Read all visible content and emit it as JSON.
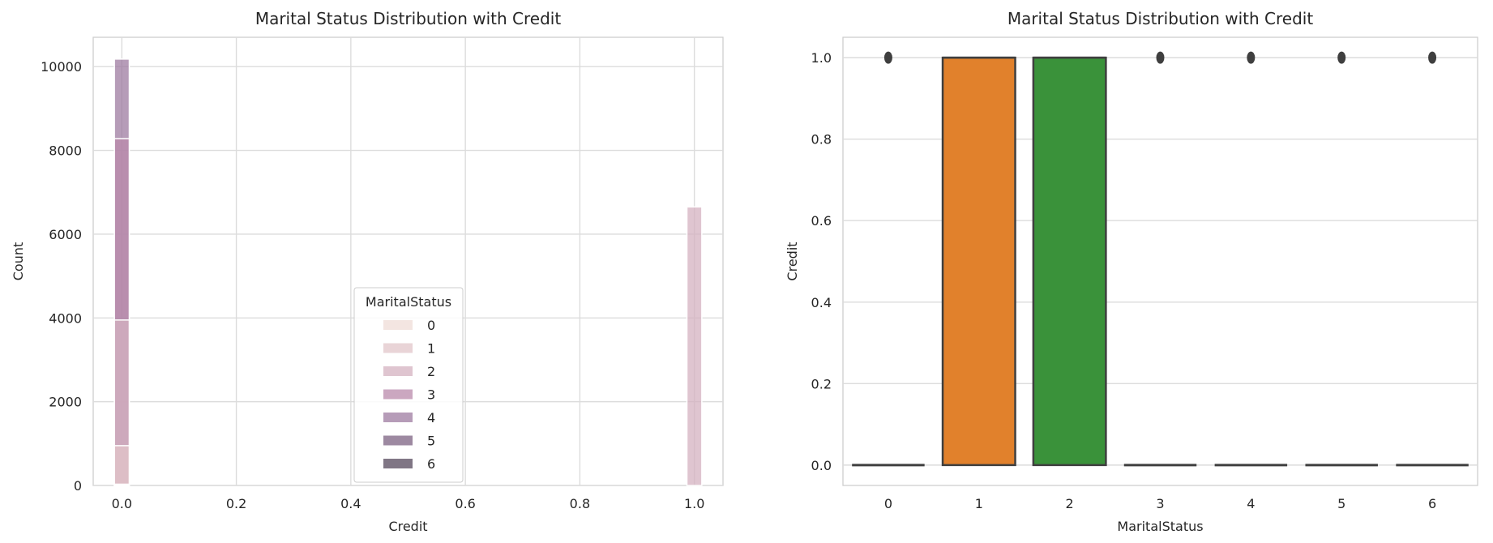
{
  "chart_data": [
    {
      "type": "histogram",
      "title": "Marital Status Distribution with Credit",
      "xlabel": "Credit",
      "ylabel": "Count",
      "xlim": [
        -0.05,
        1.05
      ],
      "ylim": [
        0,
        10700
      ],
      "xticks": [
        0.0,
        0.2,
        0.4,
        0.6,
        0.8,
        1.0
      ],
      "xtick_labels": [
        "0.0",
        "0.2",
        "0.4",
        "0.6",
        "0.8",
        "1.0"
      ],
      "yticks": [
        0,
        2000,
        4000,
        6000,
        8000,
        10000
      ],
      "ytick_labels": [
        "0",
        "2000",
        "4000",
        "6000",
        "8000",
        "10000"
      ],
      "grid": true,
      "multiple": "layer",
      "bin_width": 0.03,
      "legend": {
        "title": "MaritalStatus",
        "position": "lower-center",
        "entries": [
          "0",
          "1",
          "2",
          "3",
          "4",
          "5",
          "6"
        ]
      },
      "series": [
        {
          "name": "0",
          "color": "#efdcd7",
          "x": [
            0.0,
            1.0
          ],
          "values": [
            30,
            0
          ]
        },
        {
          "name": "1",
          "color": "#e2c6ca",
          "x": [
            0.0,
            1.0
          ],
          "values": [
            950,
            0
          ]
        },
        {
          "name": "2",
          "color": "#d4b1c0",
          "x": [
            0.0,
            1.0
          ],
          "values": [
            3950,
            6650
          ]
        },
        {
          "name": "3",
          "color": "#b98aab",
          "x": [
            0.0,
            1.0
          ],
          "values": [
            8280,
            0
          ]
        },
        {
          "name": "4",
          "color": "#9d7ba0",
          "x": [
            0.0,
            1.0
          ],
          "values": [
            10180,
            0
          ]
        },
        {
          "name": "5",
          "color": "#7c6282",
          "x": [
            0.0,
            1.0
          ],
          "values": [
            10,
            0
          ]
        },
        {
          "name": "6",
          "color": "#56485c",
          "x": [
            0.0,
            1.0
          ],
          "values": [
            5,
            0
          ]
        }
      ]
    },
    {
      "type": "box",
      "title": "Marital Status Distribution with Credit",
      "xlabel": "MaritalStatus",
      "ylabel": "Credit",
      "ylim": [
        -0.05,
        1.05
      ],
      "categories": [
        "0",
        "1",
        "2",
        "3",
        "4",
        "5",
        "6"
      ],
      "yticks": [
        0.0,
        0.2,
        0.4,
        0.6,
        0.8,
        1.0
      ],
      "ytick_labels": [
        "0.0",
        "0.2",
        "0.4",
        "0.6",
        "0.8",
        "1.0"
      ],
      "grid": true,
      "boxes": [
        {
          "category": "0",
          "q1": 0,
          "median": 0,
          "q3": 0,
          "whisker_low": 0,
          "whisker_high": 0,
          "outliers": [
            1.0
          ],
          "color": "#3274a1"
        },
        {
          "category": "1",
          "q1": 0,
          "median": 1,
          "q3": 1,
          "whisker_low": 0,
          "whisker_high": 1,
          "outliers": [],
          "color": "#e1812c"
        },
        {
          "category": "2",
          "q1": 0,
          "median": 1,
          "q3": 1,
          "whisker_low": 0,
          "whisker_high": 1,
          "outliers": [],
          "color": "#3a923a"
        },
        {
          "category": "3",
          "q1": 0,
          "median": 0,
          "q3": 0,
          "whisker_low": 0,
          "whisker_high": 0,
          "outliers": [
            1.0
          ],
          "color": "#c03d3e"
        },
        {
          "category": "4",
          "q1": 0,
          "median": 0,
          "q3": 0,
          "whisker_low": 0,
          "whisker_high": 0,
          "outliers": [
            1.0
          ],
          "color": "#9372b2"
        },
        {
          "category": "5",
          "q1": 0,
          "median": 0,
          "q3": 0,
          "whisker_low": 0,
          "whisker_high": 0,
          "outliers": [
            1.0
          ],
          "color": "#845b53"
        },
        {
          "category": "6",
          "q1": 0,
          "median": 0,
          "q3": 0,
          "whisker_low": 0,
          "whisker_high": 0,
          "outliers": [
            1.0
          ],
          "color": "#d684bd"
        }
      ]
    }
  ]
}
